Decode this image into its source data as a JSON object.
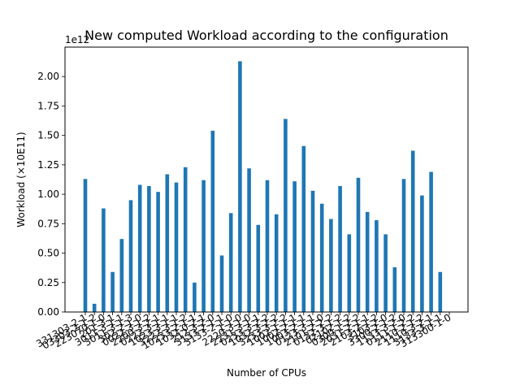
{
  "chart_data": {
    "type": "bar",
    "title": "New computed Workload according to the configuration",
    "xlabel": "Number of CPUs",
    "ylabel": "Workload (×10E11)",
    "offset_text": "1e12",
    "ylim": [
      0,
      2.25
    ],
    "yticks": [
      0.0,
      0.25,
      0.5,
      0.75,
      1.0,
      1.25,
      1.5,
      1.75,
      2.0
    ],
    "ytick_labels": [
      "0.00",
      "0.25",
      "0.50",
      "0.75",
      "1.00",
      "1.25",
      "1.50",
      "1.75",
      "2.00"
    ],
    "bar_color": "#1f77b4",
    "categories": [
      "331303-2-1",
      "03303-2-1-2",
      "223070-1-0",
      "201-3-1",
      "3011-3-1-1",
      "3011-3-1-3",
      "302-2-1-0",
      "0022-3-1-2",
      "2200-3-2-1",
      "0222-3-1-1",
      "1023-3-1-1",
      "3222-3-1-2",
      "10233-2-1-1",
      "1032-0-2-1",
      "212-3-2-0",
      "3133-2-1-1",
      "3133-2-1-0",
      "1-1-0",
      "2220-3-1-0",
      "2231-3-1-1",
      "0233-3-2-2",
      "1032-3-2-2",
      "3233-3-2-2",
      "1002-1-1-1",
      "1002-2-1-1",
      "1003-2-1-1",
      "0123-3-1-0",
      "2101-2-2-2",
      "0132-3-1-2",
      "02102-1-2",
      "0300-1-2-2",
      "2031-2-1-1",
      "2103-2-1-2",
      "3103-2-0",
      "3300-2-1-2",
      "1133-3-2-0",
      "0111-1-2-2",
      "2110-2-1-2",
      "1110-3-2-1",
      "3133-3-1-1",
      "313300-1-0"
    ],
    "values": [
      1.13,
      0.07,
      0.88,
      0.34,
      0.62,
      0.95,
      1.08,
      1.07,
      1.02,
      1.17,
      1.1,
      1.23,
      0.25,
      1.12,
      1.54,
      0.48,
      0.84,
      2.13,
      1.22,
      0.74,
      1.12,
      0.83,
      1.64,
      1.11,
      1.41,
      1.03,
      0.92,
      0.79,
      1.07,
      0.66,
      1.14,
      0.85,
      0.78,
      0.66,
      0.38,
      1.13,
      1.37,
      0.99,
      1.19,
      0.34,
      0.0
    ]
  }
}
